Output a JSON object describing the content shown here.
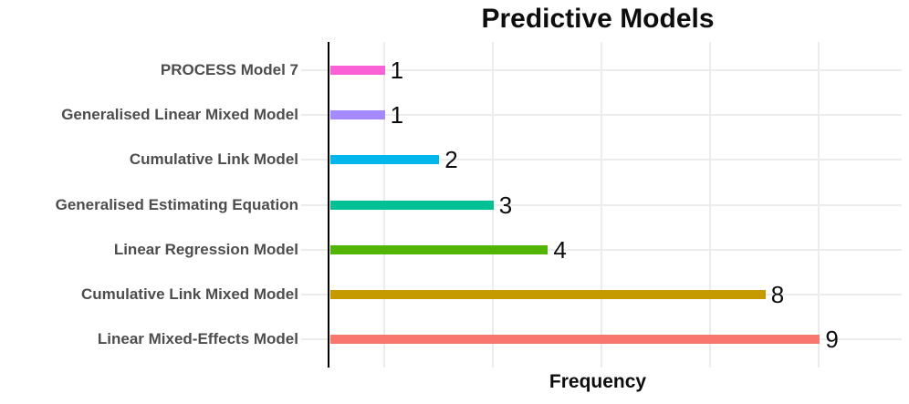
{
  "title": "Predictive Models",
  "chart_data": {
    "type": "bar",
    "orientation": "horizontal",
    "title": "Predictive Models",
    "xlabel": "Frequency",
    "ylabel": "",
    "categories": [
      "PROCESS Model 7",
      "Generalised Linear Mixed Model",
      "Cumulative Link Model",
      "Generalised Estimating Equation",
      "Linear Regression Model",
      "Cumulative Link Mixed Model",
      "Linear Mixed-Effects Model"
    ],
    "values": [
      1,
      1,
      2,
      3,
      4,
      8,
      9
    ],
    "value_labels": [
      "1",
      "1",
      "2",
      "3",
      "4",
      "8",
      "9"
    ],
    "bar_colors": [
      "#FB61D7",
      "#A58AFF",
      "#00B6EB",
      "#00C094",
      "#53B400",
      "#C49A00",
      "#F8766D"
    ],
    "xlim": [
      0,
      10.5
    ],
    "x_gridlines": [
      1,
      3,
      5,
      7,
      9
    ],
    "grid": "on",
    "legend": "none"
  },
  "colors": {
    "background": "#ffffff",
    "gridline": "#ececec",
    "axis_line": "#000000",
    "category_label": "#4d4d4d",
    "text": "#0d0d0d"
  }
}
